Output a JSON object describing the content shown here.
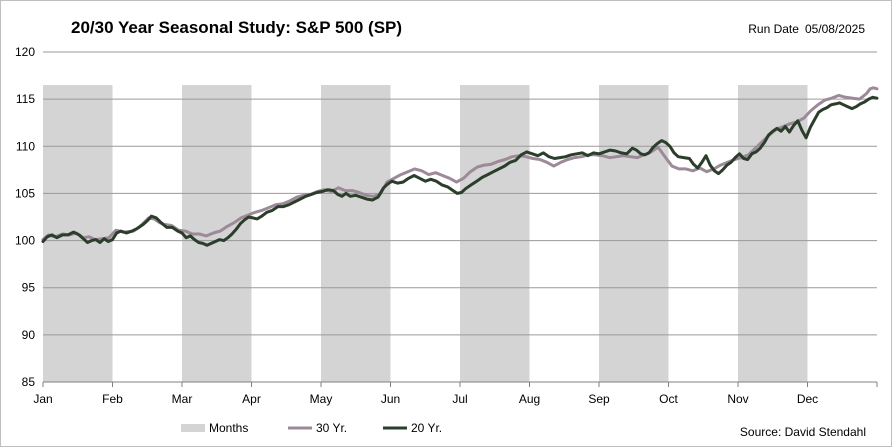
{
  "header": {
    "title": "20/30 Year Seasonal Study: S&P 500 (SP)",
    "run_date_label": "Run Date",
    "run_date_value": "05/08/2025"
  },
  "footer": {
    "source": "Source: David Stendahl"
  },
  "colors": {
    "band": "#d4d4d4",
    "series_30yr": "#9c8a98",
    "series_20yr": "#2b3d2b",
    "grid": "#9a9a9a"
  },
  "chart_data": {
    "type": "line",
    "title": "20/30 Year Seasonal Study: S&P 500 (SP)",
    "xlabel": "",
    "ylabel": "",
    "ylim": [
      85,
      120
    ],
    "yticks": [
      85,
      90,
      95,
      100,
      105,
      110,
      115,
      120
    ],
    "xlim": [
      0,
      12
    ],
    "grid": true,
    "legend_position": "bottom",
    "months": [
      "Jan",
      "Feb",
      "Mar",
      "Apr",
      "May",
      "Jun",
      "Jul",
      "Aug",
      "Sep",
      "Oct",
      "Nov",
      "Dec"
    ],
    "shaded_months": [
      "Jan",
      "Mar",
      "May",
      "Jul",
      "Sep",
      "Nov"
    ],
    "shaded_band_top": 116.5,
    "band_legend_label": "Months",
    "x_unit": "months elapsed since Jan 1",
    "series": [
      {
        "name": "30 Yr.",
        "color": "#9c8a98",
        "points": [
          [
            0.0,
            100.1
          ],
          [
            0.08,
            100.6
          ],
          [
            0.17,
            100.4
          ],
          [
            0.28,
            100.7
          ],
          [
            0.38,
            100.6
          ],
          [
            0.48,
            100.8
          ],
          [
            0.58,
            100.3
          ],
          [
            0.66,
            100.4
          ],
          [
            0.75,
            100.1
          ],
          [
            0.85,
            100.2
          ],
          [
            0.95,
            100.3
          ],
          [
            1.05,
            101.1
          ],
          [
            1.15,
            100.9
          ],
          [
            1.3,
            101.0
          ],
          [
            1.38,
            101.4
          ],
          [
            1.45,
            101.9
          ],
          [
            1.52,
            102.4
          ],
          [
            1.6,
            102.3
          ],
          [
            1.68,
            101.9
          ],
          [
            1.75,
            101.7
          ],
          [
            1.85,
            101.6
          ],
          [
            1.95,
            101.1
          ],
          [
            2.05,
            101.0
          ],
          [
            2.15,
            100.7
          ],
          [
            2.25,
            100.7
          ],
          [
            2.35,
            100.5
          ],
          [
            2.45,
            100.8
          ],
          [
            2.55,
            101.0
          ],
          [
            2.65,
            101.5
          ],
          [
            2.75,
            101.9
          ],
          [
            2.85,
            102.4
          ],
          [
            2.95,
            102.7
          ],
          [
            3.05,
            103.0
          ],
          [
            3.15,
            103.2
          ],
          [
            3.25,
            103.5
          ],
          [
            3.35,
            103.8
          ],
          [
            3.45,
            103.9
          ],
          [
            3.55,
            104.2
          ],
          [
            3.65,
            104.6
          ],
          [
            3.75,
            104.8
          ],
          [
            3.85,
            104.9
          ],
          [
            3.95,
            105.2
          ],
          [
            4.05,
            105.4
          ],
          [
            4.15,
            105.2
          ],
          [
            4.25,
            105.6
          ],
          [
            4.35,
            105.3
          ],
          [
            4.45,
            105.3
          ],
          [
            4.55,
            105.1
          ],
          [
            4.65,
            104.8
          ],
          [
            4.75,
            104.7
          ],
          [
            4.85,
            104.9
          ],
          [
            4.95,
            106.2
          ],
          [
            5.05,
            106.6
          ],
          [
            5.15,
            107.0
          ],
          [
            5.25,
            107.3
          ],
          [
            5.35,
            107.6
          ],
          [
            5.45,
            107.4
          ],
          [
            5.55,
            107.0
          ],
          [
            5.65,
            107.2
          ],
          [
            5.75,
            106.9
          ],
          [
            5.85,
            106.6
          ],
          [
            5.95,
            106.2
          ],
          [
            6.05,
            106.6
          ],
          [
            6.15,
            107.3
          ],
          [
            6.25,
            107.8
          ],
          [
            6.35,
            108.0
          ],
          [
            6.45,
            108.1
          ],
          [
            6.55,
            108.4
          ],
          [
            6.65,
            108.6
          ],
          [
            6.75,
            108.9
          ],
          [
            6.85,
            109.0
          ],
          [
            6.95,
            108.9
          ],
          [
            7.05,
            108.7
          ],
          [
            7.15,
            108.6
          ],
          [
            7.25,
            108.3
          ],
          [
            7.35,
            107.9
          ],
          [
            7.45,
            108.3
          ],
          [
            7.55,
            108.6
          ],
          [
            7.65,
            108.8
          ],
          [
            7.75,
            108.9
          ],
          [
            7.85,
            109.1
          ],
          [
            7.95,
            109.1
          ],
          [
            8.05,
            109.0
          ],
          [
            8.15,
            108.8
          ],
          [
            8.25,
            108.9
          ],
          [
            8.35,
            109.0
          ],
          [
            8.45,
            108.9
          ],
          [
            8.55,
            108.8
          ],
          [
            8.65,
            109.1
          ],
          [
            8.75,
            109.4
          ],
          [
            8.85,
            109.9
          ],
          [
            8.95,
            108.9
          ],
          [
            9.05,
            107.9
          ],
          [
            9.15,
            107.6
          ],
          [
            9.25,
            107.6
          ],
          [
            9.35,
            107.4
          ],
          [
            9.45,
            107.7
          ],
          [
            9.55,
            107.3
          ],
          [
            9.65,
            107.6
          ],
          [
            9.75,
            108.0
          ],
          [
            9.85,
            108.3
          ],
          [
            9.95,
            108.6
          ],
          [
            10.05,
            108.8
          ],
          [
            10.15,
            109.1
          ],
          [
            10.25,
            109.8
          ],
          [
            10.35,
            110.5
          ],
          [
            10.45,
            111.2
          ],
          [
            10.55,
            111.8
          ],
          [
            10.65,
            112.1
          ],
          [
            10.75,
            112.4
          ],
          [
            10.85,
            112.6
          ],
          [
            10.95,
            113.0
          ],
          [
            11.05,
            113.8
          ],
          [
            11.15,
            114.4
          ],
          [
            11.25,
            114.9
          ],
          [
            11.35,
            115.1
          ],
          [
            11.45,
            115.4
          ],
          [
            11.55,
            115.2
          ],
          [
            11.65,
            115.1
          ],
          [
            11.75,
            115.0
          ],
          [
            11.8,
            115.3
          ],
          [
            11.85,
            115.6
          ],
          [
            11.9,
            116.1
          ],
          [
            11.95,
            116.2
          ],
          [
            12.0,
            116.1
          ]
        ]
      },
      {
        "name": "20 Yr.",
        "color": "#2b3d2b",
        "points": [
          [
            0.0,
            99.9
          ],
          [
            0.06,
            100.4
          ],
          [
            0.13,
            100.6
          ],
          [
            0.2,
            100.3
          ],
          [
            0.28,
            100.6
          ],
          [
            0.36,
            100.6
          ],
          [
            0.44,
            100.9
          ],
          [
            0.52,
            100.6
          ],
          [
            0.58,
            100.2
          ],
          [
            0.64,
            99.8
          ],
          [
            0.7,
            100.0
          ],
          [
            0.76,
            100.1
          ],
          [
            0.82,
            99.8
          ],
          [
            0.88,
            100.2
          ],
          [
            0.94,
            99.9
          ],
          [
            1.0,
            100.1
          ],
          [
            1.06,
            100.8
          ],
          [
            1.12,
            101.0
          ],
          [
            1.2,
            100.8
          ],
          [
            1.28,
            101.0
          ],
          [
            1.36,
            101.3
          ],
          [
            1.44,
            101.7
          ],
          [
            1.5,
            102.1
          ],
          [
            1.56,
            102.6
          ],
          [
            1.63,
            102.4
          ],
          [
            1.7,
            101.9
          ],
          [
            1.78,
            101.4
          ],
          [
            1.86,
            101.4
          ],
          [
            1.94,
            101.0
          ],
          [
            2.0,
            100.8
          ],
          [
            2.06,
            100.3
          ],
          [
            2.12,
            100.5
          ],
          [
            2.18,
            100.1
          ],
          [
            2.24,
            99.8
          ],
          [
            2.3,
            99.7
          ],
          [
            2.36,
            99.5
          ],
          [
            2.42,
            99.7
          ],
          [
            2.48,
            99.9
          ],
          [
            2.54,
            100.1
          ],
          [
            2.6,
            100.0
          ],
          [
            2.66,
            100.3
          ],
          [
            2.72,
            100.7
          ],
          [
            2.78,
            101.2
          ],
          [
            2.84,
            101.8
          ],
          [
            2.9,
            102.2
          ],
          [
            2.96,
            102.5
          ],
          [
            3.02,
            102.4
          ],
          [
            3.08,
            102.3
          ],
          [
            3.15,
            102.6
          ],
          [
            3.22,
            103.0
          ],
          [
            3.3,
            103.2
          ],
          [
            3.38,
            103.6
          ],
          [
            3.46,
            103.6
          ],
          [
            3.54,
            103.8
          ],
          [
            3.62,
            104.1
          ],
          [
            3.7,
            104.4
          ],
          [
            3.78,
            104.7
          ],
          [
            3.86,
            104.9
          ],
          [
            3.94,
            105.1
          ],
          [
            4.02,
            105.2
          ],
          [
            4.1,
            105.4
          ],
          [
            4.18,
            105.3
          ],
          [
            4.24,
            104.9
          ],
          [
            4.3,
            104.7
          ],
          [
            4.36,
            105.0
          ],
          [
            4.42,
            104.7
          ],
          [
            4.5,
            104.8
          ],
          [
            4.58,
            104.6
          ],
          [
            4.66,
            104.4
          ],
          [
            4.74,
            104.3
          ],
          [
            4.82,
            104.6
          ],
          [
            4.9,
            105.6
          ],
          [
            4.96,
            106.0
          ],
          [
            5.02,
            106.3
          ],
          [
            5.1,
            106.1
          ],
          [
            5.18,
            106.2
          ],
          [
            5.26,
            106.6
          ],
          [
            5.34,
            106.9
          ],
          [
            5.42,
            106.6
          ],
          [
            5.5,
            106.3
          ],
          [
            5.58,
            106.5
          ],
          [
            5.66,
            106.3
          ],
          [
            5.74,
            105.9
          ],
          [
            5.82,
            105.7
          ],
          [
            5.9,
            105.3
          ],
          [
            5.96,
            105.0
          ],
          [
            6.02,
            105.1
          ],
          [
            6.08,
            105.5
          ],
          [
            6.16,
            105.9
          ],
          [
            6.24,
            106.3
          ],
          [
            6.32,
            106.7
          ],
          [
            6.4,
            107.0
          ],
          [
            6.48,
            107.3
          ],
          [
            6.56,
            107.6
          ],
          [
            6.64,
            107.9
          ],
          [
            6.72,
            108.3
          ],
          [
            6.8,
            108.5
          ],
          [
            6.88,
            109.1
          ],
          [
            6.96,
            109.4
          ],
          [
            7.04,
            109.2
          ],
          [
            7.12,
            109.0
          ],
          [
            7.2,
            109.3
          ],
          [
            7.28,
            108.9
          ],
          [
            7.36,
            108.7
          ],
          [
            7.44,
            108.8
          ],
          [
            7.52,
            108.9
          ],
          [
            7.6,
            109.1
          ],
          [
            7.68,
            109.2
          ],
          [
            7.76,
            109.3
          ],
          [
            7.84,
            109.0
          ],
          [
            7.92,
            109.3
          ],
          [
            8.0,
            109.2
          ],
          [
            8.08,
            109.4
          ],
          [
            8.16,
            109.6
          ],
          [
            8.24,
            109.5
          ],
          [
            8.32,
            109.3
          ],
          [
            8.4,
            109.2
          ],
          [
            8.48,
            109.8
          ],
          [
            8.54,
            109.6
          ],
          [
            8.6,
            109.2
          ],
          [
            8.66,
            109.1
          ],
          [
            8.72,
            109.3
          ],
          [
            8.78,
            109.9
          ],
          [
            8.84,
            110.3
          ],
          [
            8.9,
            110.6
          ],
          [
            8.96,
            110.4
          ],
          [
            9.02,
            110.0
          ],
          [
            9.08,
            109.3
          ],
          [
            9.14,
            108.9
          ],
          [
            9.22,
            108.8
          ],
          [
            9.3,
            108.7
          ],
          [
            9.36,
            108.1
          ],
          [
            9.42,
            107.7
          ],
          [
            9.48,
            108.3
          ],
          [
            9.54,
            109.0
          ],
          [
            9.6,
            108.0
          ],
          [
            9.66,
            107.4
          ],
          [
            9.72,
            107.1
          ],
          [
            9.78,
            107.5
          ],
          [
            9.84,
            108.0
          ],
          [
            9.9,
            108.3
          ],
          [
            9.96,
            108.8
          ],
          [
            10.02,
            109.2
          ],
          [
            10.08,
            108.7
          ],
          [
            10.14,
            108.6
          ],
          [
            10.2,
            109.2
          ],
          [
            10.26,
            109.4
          ],
          [
            10.32,
            109.8
          ],
          [
            10.38,
            110.4
          ],
          [
            10.44,
            111.2
          ],
          [
            10.5,
            111.6
          ],
          [
            10.56,
            111.9
          ],
          [
            10.62,
            111.6
          ],
          [
            10.68,
            112.1
          ],
          [
            10.74,
            111.5
          ],
          [
            10.8,
            112.2
          ],
          [
            10.86,
            112.7
          ],
          [
            10.92,
            111.7
          ],
          [
            10.98,
            110.9
          ],
          [
            11.04,
            112.0
          ],
          [
            11.1,
            112.8
          ],
          [
            11.16,
            113.6
          ],
          [
            11.22,
            113.9
          ],
          [
            11.28,
            114.1
          ],
          [
            11.34,
            114.4
          ],
          [
            11.4,
            114.5
          ],
          [
            11.46,
            114.6
          ],
          [
            11.52,
            114.4
          ],
          [
            11.58,
            114.2
          ],
          [
            11.64,
            114.0
          ],
          [
            11.7,
            114.2
          ],
          [
            11.76,
            114.5
          ],
          [
            11.82,
            114.7
          ],
          [
            11.88,
            115.0
          ],
          [
            11.94,
            115.2
          ],
          [
            12.0,
            115.1
          ]
        ]
      }
    ]
  }
}
